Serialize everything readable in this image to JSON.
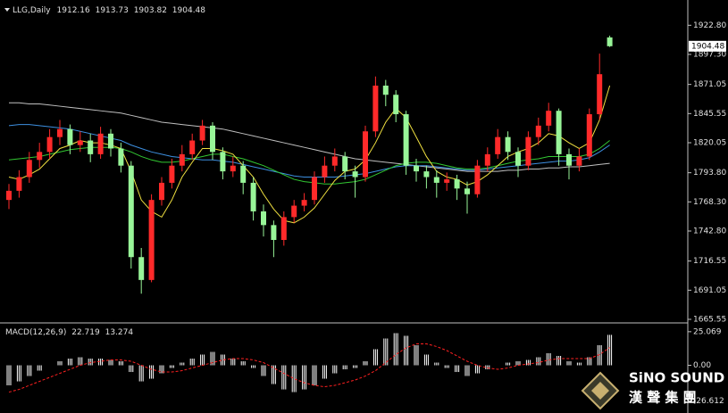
{
  "header": {
    "symbol": "LLG,Daily"
  },
  "chart_data": [
    {
      "type": "candlestick",
      "up_color": "#ff2a2a",
      "down_color": "#98f598",
      "open": [
        1770,
        1778,
        1790,
        1805,
        1812,
        1825,
        1832,
        1818,
        1822,
        1810,
        1828,
        1815,
        1800,
        1720,
        1700,
        1770,
        1785,
        1800,
        1810,
        1822,
        1835,
        1812,
        1795,
        1800,
        1785,
        1760,
        1748,
        1735,
        1755,
        1765,
        1770,
        1790,
        1800,
        1808,
        1795,
        1790,
        1830,
        1870,
        1862,
        1845,
        1800,
        1795,
        1790,
        1785,
        1788,
        1780,
        1775,
        1800,
        1810,
        1825,
        1812,
        1800,
        1825,
        1835,
        1848,
        1810,
        1800,
        1808,
        1845,
        1912.16
      ],
      "high": [
        1784,
        1796,
        1812,
        1820,
        1832,
        1840,
        1836,
        1830,
        1828,
        1834,
        1832,
        1820,
        1804,
        1728,
        1775,
        1790,
        1806,
        1818,
        1828,
        1840,
        1838,
        1816,
        1808,
        1804,
        1790,
        1766,
        1752,
        1760,
        1770,
        1776,
        1795,
        1808,
        1815,
        1812,
        1800,
        1835,
        1878,
        1875,
        1866,
        1848,
        1806,
        1800,
        1796,
        1794,
        1792,
        1786,
        1805,
        1816,
        1832,
        1830,
        1816,
        1830,
        1842,
        1855,
        1850,
        1815,
        1815,
        1850,
        1898,
        1913.73
      ],
      "low": [
        1762,
        1772,
        1785,
        1798,
        1806,
        1818,
        1810,
        1812,
        1803,
        1806,
        1808,
        1794,
        1710,
        1688,
        1698,
        1765,
        1780,
        1795,
        1805,
        1818,
        1805,
        1788,
        1790,
        1775,
        1752,
        1738,
        1720,
        1730,
        1750,
        1760,
        1766,
        1785,
        1795,
        1788,
        1772,
        1786,
        1825,
        1852,
        1838,
        1792,
        1786,
        1780,
        1772,
        1778,
        1770,
        1758,
        1772,
        1795,
        1806,
        1805,
        1790,
        1796,
        1818,
        1830,
        1800,
        1788,
        1795,
        1805,
        1840,
        1903.82
      ],
      "close": [
        1778,
        1790,
        1805,
        1812,
        1825,
        1832,
        1818,
        1822,
        1810,
        1828,
        1815,
        1800,
        1720,
        1700,
        1770,
        1785,
        1800,
        1810,
        1822,
        1835,
        1812,
        1795,
        1800,
        1785,
        1760,
        1748,
        1735,
        1755,
        1765,
        1770,
        1790,
        1800,
        1808,
        1795,
        1790,
        1830,
        1870,
        1862,
        1845,
        1800,
        1795,
        1790,
        1785,
        1788,
        1780,
        1775,
        1800,
        1810,
        1825,
        1812,
        1800,
        1825,
        1835,
        1848,
        1810,
        1800,
        1808,
        1845,
        1880,
        1904.48
      ],
      "series": [
        {
          "color": "#c0c0c0",
          "values": [
            1855,
            1855,
            1854,
            1854,
            1853,
            1852,
            1851,
            1850,
            1849,
            1848,
            1847,
            1846,
            1844,
            1842,
            1840,
            1838,
            1837,
            1836,
            1835,
            1834,
            1833,
            1832,
            1830,
            1828,
            1826,
            1824,
            1822,
            1820,
            1818,
            1816,
            1814,
            1812,
            1810,
            1808,
            1806,
            1805,
            1804,
            1803,
            1802,
            1801,
            1800,
            1799,
            1798,
            1797,
            1796,
            1795,
            1795,
            1795,
            1795,
            1796,
            1796,
            1797,
            1797,
            1798,
            1798,
            1799,
            1799,
            1800,
            1801,
            1802
          ]
        },
        {
          "color": "#3d8fe0",
          "values": [
            1835,
            1836,
            1836,
            1835,
            1834,
            1833,
            1832,
            1830,
            1828,
            1826,
            1824,
            1822,
            1818,
            1815,
            1812,
            1810,
            1808,
            1807,
            1806,
            1805,
            1805,
            1804,
            1803,
            1801,
            1799,
            1797,
            1795,
            1793,
            1791,
            1790,
            1790,
            1790,
            1790,
            1791,
            1792,
            1793,
            1795,
            1797,
            1799,
            1800,
            1800,
            1800,
            1799,
            1798,
            1797,
            1796,
            1796,
            1797,
            1798,
            1799,
            1800,
            1801,
            1802,
            1803,
            1804,
            1804,
            1805,
            1807,
            1812,
            1818
          ]
        },
        {
          "color": "#32c832",
          "values": [
            1805,
            1806,
            1807,
            1808,
            1810,
            1812,
            1814,
            1815,
            1816,
            1816,
            1816,
            1815,
            1812,
            1808,
            1805,
            1803,
            1803,
            1804,
            1806,
            1808,
            1810,
            1810,
            1808,
            1806,
            1803,
            1800,
            1796,
            1792,
            1788,
            1786,
            1785,
            1784,
            1784,
            1785,
            1786,
            1788,
            1792,
            1796,
            1800,
            1802,
            1803,
            1803,
            1802,
            1800,
            1798,
            1797,
            1797,
            1798,
            1800,
            1802,
            1804,
            1805,
            1806,
            1808,
            1808,
            1808,
            1808,
            1810,
            1815,
            1822
          ]
        },
        {
          "color": "#f0e040",
          "values": [
            1790,
            1788,
            1792,
            1797,
            1806,
            1815,
            1818,
            1822,
            1820,
            1820,
            1818,
            1815,
            1795,
            1770,
            1760,
            1755,
            1770,
            1790,
            1803,
            1815,
            1815,
            1813,
            1810,
            1800,
            1790,
            1775,
            1762,
            1752,
            1750,
            1755,
            1763,
            1775,
            1787,
            1795,
            1797,
            1805,
            1820,
            1838,
            1850,
            1842,
            1825,
            1808,
            1795,
            1790,
            1788,
            1783,
            1786,
            1792,
            1800,
            1808,
            1812,
            1815,
            1820,
            1828,
            1826,
            1820,
            1815,
            1820,
            1840,
            1870
          ]
        }
      ],
      "ylim": [
        1664,
        1941
      ],
      "yticks": [
        {
          "value": 1922.8,
          "label": "1922.80"
        },
        {
          "value": 1897.3,
          "label": "1897.30"
        },
        1871.05,
        1845.55,
        1820.05,
        {
          "value": 1793.8,
          "label": "1793.80"
        },
        {
          "value": 1768.3,
          "label": "1768.30"
        },
        {
          "value": 1742.8,
          "label": "1742.80"
        },
        1716.55,
        1691.05,
        1665.55
      ]
    },
    {
      "type": "macd",
      "title": "MACD(12,26,9)",
      "histogram": {
        "color": "#ffffff",
        "values": [
          -15,
          -12,
          -8,
          -4,
          0,
          3,
          5,
          6,
          5,
          5,
          4,
          3,
          -5,
          -12,
          -10,
          -6,
          -2,
          2,
          5,
          8,
          10,
          8,
          5,
          3,
          -2,
          -8,
          -14,
          -18,
          -20,
          -18,
          -15,
          -10,
          -6,
          -3,
          -2,
          3,
          12,
          20,
          24,
          22,
          15,
          8,
          2,
          -2,
          -5,
          -8,
          -6,
          -3,
          0,
          2,
          3,
          4,
          6,
          9,
          7,
          3,
          2,
          6,
          15,
          22.719
        ]
      },
      "signal": {
        "color": "#ff2020",
        "values": [
          -20,
          -18,
          -15,
          -12,
          -9,
          -6,
          -3,
          0,
          2,
          3,
          4,
          4,
          3,
          0,
          -3,
          -5,
          -5,
          -4,
          -2,
          0,
          2,
          4,
          5,
          5,
          4,
          2,
          -2,
          -6,
          -10,
          -13,
          -15,
          -16,
          -15,
          -13,
          -11,
          -8,
          -4,
          2,
          8,
          13,
          16,
          16,
          14,
          11,
          7,
          3,
          0,
          -2,
          -3,
          -2,
          0,
          1,
          2,
          4,
          5,
          5,
          5,
          5,
          8,
          13.274
        ]
      },
      "ylim": [
        -33.6,
        30.3
      ],
      "yticks": [
        25.069,
        {
          "value": 0,
          "label": "0.00"
        },
        -26.612
      ]
    }
  ],
  "logo": {
    "name": "SiNO SOUND",
    "chinese": "漢 聲 集 團"
  }
}
